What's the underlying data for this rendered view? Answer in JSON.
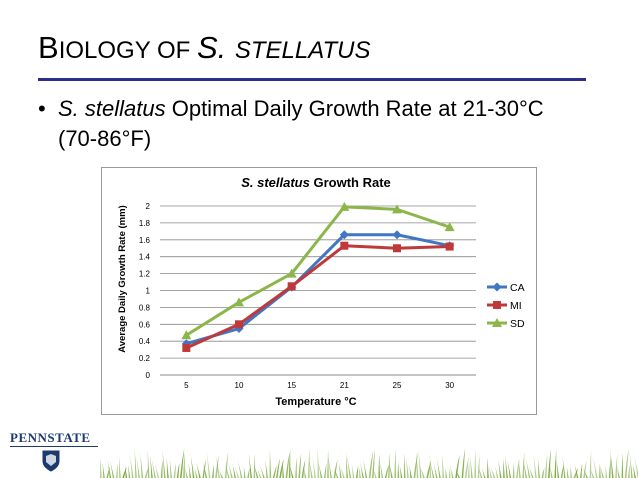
{
  "slide": {
    "title_first_letter": "B",
    "title_rest": "IOLOGY OF ",
    "title_species": "S.",
    "title_species_rest": "STELLATUS",
    "bullet_species": "S. stellatus",
    "bullet_text": " Optimal Daily Growth Rate at 21-30°C (70-86°F)"
  },
  "logo": {
    "text": "PENNSTATE"
  },
  "colors": {
    "accent_rule": "#2b2e8a",
    "CA": "#4176c3",
    "MI": "#c0393a",
    "SD": "#8db64a",
    "grass": "#7aa83c"
  },
  "chart_data": {
    "type": "line",
    "title_species": "S. stellatus",
    "title_rest": " Growth Rate",
    "xlabel": "Temperature °C",
    "ylabel": "Average Daily Growth Rate (mm)",
    "categories": [
      "5",
      "10",
      "15",
      "21",
      "25",
      "30"
    ],
    "ylim": [
      0,
      2
    ],
    "yticks": [
      "0",
      "0.2",
      "0.4",
      "0.6",
      "0.8",
      "1",
      "1.2",
      "1.4",
      "1.6",
      "1.8",
      "2"
    ],
    "series": [
      {
        "name": "CA",
        "marker": "diamond",
        "values": [
          0.37,
          0.55,
          1.04,
          1.66,
          1.66,
          1.53
        ]
      },
      {
        "name": "MI",
        "marker": "square",
        "values": [
          0.32,
          0.6,
          1.05,
          1.53,
          1.5,
          1.52
        ]
      },
      {
        "name": "SD",
        "marker": "triangle",
        "values": [
          0.47,
          0.86,
          1.2,
          1.99,
          1.96,
          1.75
        ]
      }
    ],
    "legend": "right",
    "grid": true
  }
}
